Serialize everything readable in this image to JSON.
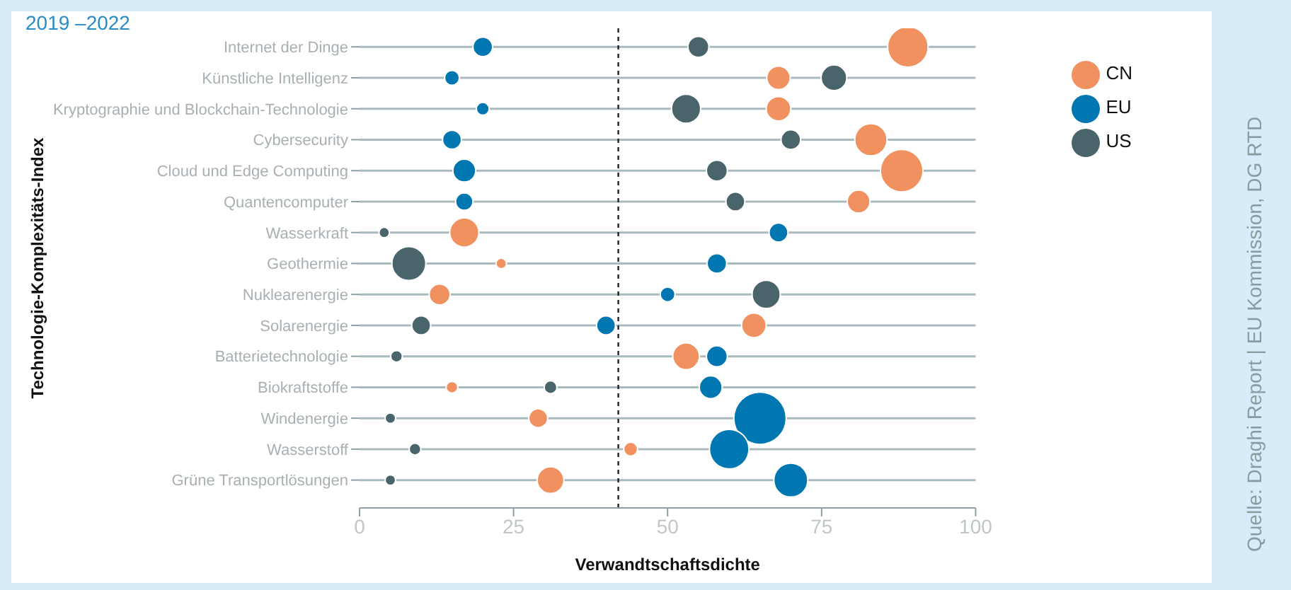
{
  "chart_data": {
    "type": "bubble",
    "title": "2019 –2022",
    "orientation": "horizontal",
    "xlabel": "Verwandtschaftsdichte",
    "ylabel": "Technologie-Komplexitäts-Index",
    "categories": [
      "Internet der Dinge",
      "Künstliche Intelligenz",
      "Kryptographie und Blockchain-Technologie",
      "Cybersecurity",
      "Cloud und Edge Computing",
      "Quantencomputer",
      "Wasserkraft",
      "Geothermie",
      "Nuklearenergie",
      "Solarenergie",
      "Batterietechnologie",
      "Biokraftstoffe",
      "Windenergie",
      "Wasserstoff",
      "Grüne Transportlösungen"
    ],
    "series": [
      {
        "name": "CN",
        "color": "#f0915f",
        "values": [
          89,
          68,
          68,
          83,
          88,
          81,
          17,
          23,
          13,
          64,
          53,
          15,
          29,
          44,
          31
        ],
        "sizes": [
          0.6,
          0.2,
          0.22,
          0.38,
          0.66,
          0.19,
          0.31,
          0.04,
          0.16,
          0.22,
          0.26,
          0.05,
          0.13,
          0.07,
          0.26
        ]
      },
      {
        "name": "EU",
        "color": "#0077b0",
        "values": [
          20,
          15,
          20,
          15,
          17,
          17,
          68,
          58,
          50,
          40,
          58,
          57,
          65,
          60,
          70
        ],
        "sizes": [
          0.14,
          0.08,
          0.06,
          0.13,
          0.19,
          0.11,
          0.13,
          0.14,
          0.08,
          0.13,
          0.16,
          0.19,
          1,
          0.57,
          0.42
        ]
      },
      {
        "name": "US",
        "color": "#4a646c",
        "values": [
          55,
          77,
          53,
          70,
          58,
          61,
          4,
          8,
          66,
          10,
          6,
          31,
          5,
          9,
          5
        ],
        "sizes": [
          0.16,
          0.24,
          0.31,
          0.14,
          0.16,
          0.13,
          0.04,
          0.42,
          0.29,
          0.13,
          0.05,
          0.06,
          0.04,
          0.05,
          0.04
        ]
      }
    ],
    "xlim": [
      0,
      100
    ],
    "xticks": [
      0,
      25,
      50,
      75,
      100
    ],
    "grid": "y",
    "legend": "right",
    "ref_lines": [
      {
        "axis": "x",
        "value": 42,
        "line_style": "dashed",
        "color": "#222222"
      }
    ],
    "annotations": [
      "Quelle: Draghi Report | EU Kommission, DG RTD"
    ]
  }
}
